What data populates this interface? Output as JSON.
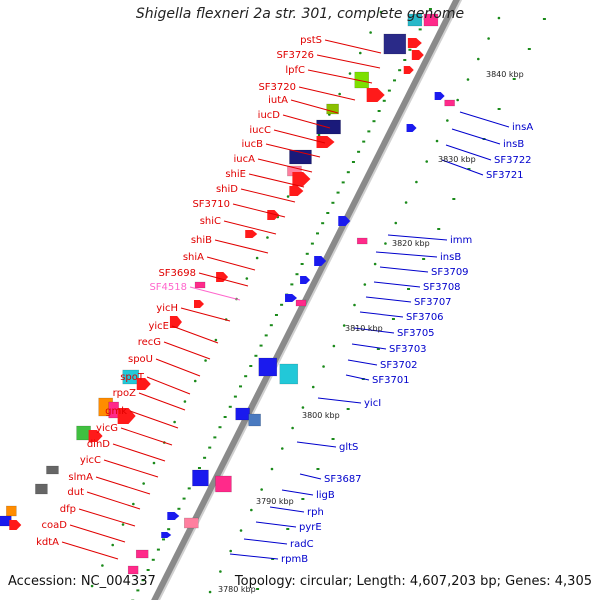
{
  "title": "Shigella flexneri 2a str. 301, complete genome",
  "footer": {
    "accession": "Accession: NC_004337",
    "topology": "Topology: circular; Length: 4,607,203 bp; Genes: 4,305"
  },
  "colors": {
    "backbone": "#8a8a8a",
    "left_label": "#e00000",
    "right_label": "#0000cc",
    "pink_label": "#ff66cc",
    "tick": "#1a8a1a"
  },
  "scale_labels": [
    "3840 kbp",
    "3830 kbp",
    "3820 kbp",
    "3810 kbp",
    "3800 kbp",
    "3790 kbp",
    "3780 kbp"
  ],
  "left_genes": [
    "pstS",
    "SF3726",
    "lpfC",
    "SF3720",
    "iutA",
    "iucD",
    "iucC",
    "iucB",
    "iucA",
    "shiE",
    "shiD",
    "SF3710",
    "shiC",
    "shiB",
    "shiA",
    "SF3698",
    "SF4518",
    "yicH",
    "yicE",
    "recG",
    "spoU",
    "spoT",
    "rpoZ",
    "gmk",
    "yicG",
    "dinD",
    "yicC",
    "slmA",
    "dut",
    "dfp",
    "coaD",
    "kdtA"
  ],
  "right_genes": [
    "insA",
    "insB",
    "SF3722",
    "SF3721",
    "imm",
    "insB",
    "SF3709",
    "SF3708",
    "SF3707",
    "SF3706",
    "SF3705",
    "SF3703",
    "SF3702",
    "SF3701",
    "yicI",
    "gltS",
    "SF3687",
    "ligB",
    "rph",
    "pyrE",
    "radC",
    "rpmB"
  ]
}
